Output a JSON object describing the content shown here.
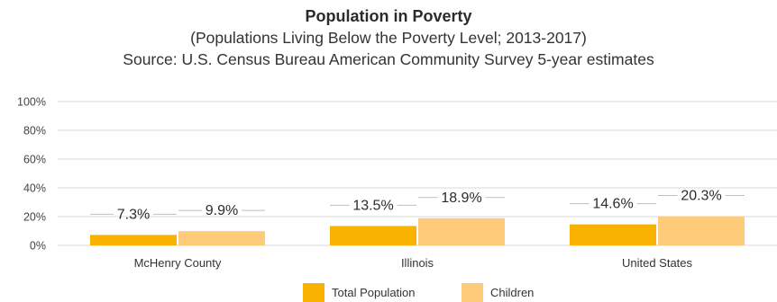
{
  "chart_data": {
    "type": "bar",
    "title": "Population in Poverty",
    "subtitle_lines": [
      "(Populations Living Below the Poverty Level; 2013-2017)",
      "Source: U.S. Census Bureau American Community Survey 5-year estimates"
    ],
    "categories": [
      "McHenry County",
      "Illinois",
      "United States"
    ],
    "series": [
      {
        "name": "Total Population",
        "values": [
          7.3,
          13.5,
          14.6
        ],
        "labels": [
          "7.3%",
          "13.5%",
          "14.6%"
        ],
        "color": "#F9B200"
      },
      {
        "name": "Children",
        "values": [
          9.9,
          18.9,
          20.3
        ],
        "labels": [
          "9.9%",
          "18.9%",
          "20.3%"
        ],
        "color": "#FDCB7A"
      }
    ],
    "ylim": [
      0,
      100
    ],
    "yticks": [
      "0%",
      "20%",
      "40%",
      "60%",
      "80%",
      "100%"
    ],
    "ytick_values": [
      0,
      20,
      40,
      60,
      80,
      100
    ],
    "grid": true,
    "legend": "bottom-center",
    "colors": {
      "grid": "#D9D9D9",
      "label_line": "#BFBFBF"
    }
  }
}
